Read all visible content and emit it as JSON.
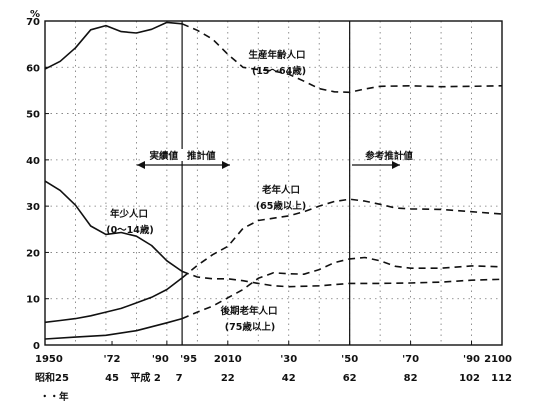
{
  "chart_data": {
    "type": "line",
    "ylabel": "%",
    "ylim": [
      0,
      70
    ],
    "y_ticks": [
      0,
      10,
      20,
      30,
      40,
      50,
      60,
      70
    ],
    "xlim": [
      1950,
      2100
    ],
    "x_ticks": [
      {
        "x": 1950,
        "label": "1950",
        "sublabel": "昭和25"
      },
      {
        "x": 1972,
        "label": "'72",
        "sublabel": "45"
      },
      {
        "x": 1990,
        "label": "'90",
        "sublabel": "平成 2"
      },
      {
        "x": 1995,
        "label": "'95",
        "sublabel": "7"
      },
      {
        "x": 2010,
        "label": "2010",
        "sublabel": "22"
      },
      {
        "x": 2030,
        "label": "'30",
        "sublabel": "42"
      },
      {
        "x": 2050,
        "label": "'50",
        "sublabel": "62"
      },
      {
        "x": 2070,
        "label": "'70",
        "sublabel": "82"
      },
      {
        "x": 2090,
        "label": "'90",
        "sublabel": "102"
      },
      {
        "x": 2100,
        "label": "2100",
        "sublabel": "112"
      }
    ],
    "x_unit_label": "・・年",
    "divider_years": [
      1995,
      2050
    ],
    "series": [
      {
        "name": "生産年齢人口",
        "name2": "(15～64歳)",
        "actual": [
          [
            1950,
            59.6
          ],
          [
            1955,
            61.3
          ],
          [
            1960,
            64.2
          ],
          [
            1965,
            68.1
          ],
          [
            1970,
            69.0
          ],
          [
            1975,
            67.7
          ],
          [
            1980,
            67.4
          ],
          [
            1985,
            68.2
          ],
          [
            1990,
            69.7
          ],
          [
            1995,
            69.4
          ]
        ],
        "projected": [
          [
            1995,
            69.4
          ],
          [
            2000,
            68.0
          ],
          [
            2005,
            66.1
          ],
          [
            2010,
            62.8
          ],
          [
            2015,
            60.0
          ],
          [
            2020,
            59.5
          ],
          [
            2025,
            59.2
          ],
          [
            2030,
            58.5
          ],
          [
            2035,
            57.0
          ],
          [
            2040,
            55.4
          ],
          [
            2045,
            54.7
          ],
          [
            2050,
            54.6
          ],
          [
            2055,
            55.3
          ],
          [
            2060,
            55.9
          ],
          [
            2070,
            56.0
          ],
          [
            2080,
            55.8
          ],
          [
            2090,
            55.9
          ],
          [
            2100,
            56.0
          ]
        ]
      },
      {
        "name": "年少人口",
        "name2": "(0～14歳)",
        "actual": [
          [
            1950,
            35.4
          ],
          [
            1955,
            33.4
          ],
          [
            1960,
            30.2
          ],
          [
            1965,
            25.7
          ],
          [
            1970,
            23.9
          ],
          [
            1975,
            24.3
          ],
          [
            1980,
            23.5
          ],
          [
            1985,
            21.5
          ],
          [
            1990,
            18.2
          ],
          [
            1995,
            15.9
          ]
        ],
        "projected": [
          [
            1995,
            15.9
          ],
          [
            2000,
            14.7
          ],
          [
            2005,
            14.3
          ],
          [
            2010,
            14.3
          ],
          [
            2015,
            13.9
          ],
          [
            2020,
            13.3
          ],
          [
            2025,
            12.8
          ],
          [
            2030,
            12.6
          ],
          [
            2040,
            12.8
          ],
          [
            2050,
            13.3
          ],
          [
            2060,
            13.3
          ],
          [
            2070,
            13.4
          ],
          [
            2080,
            13.6
          ],
          [
            2090,
            14.0
          ],
          [
            2100,
            14.2
          ]
        ]
      },
      {
        "name": "老年人口",
        "name2": "(65歳以上)",
        "actual": [
          [
            1950,
            4.9
          ],
          [
            1955,
            5.3
          ],
          [
            1960,
            5.7
          ],
          [
            1965,
            6.3
          ],
          [
            1970,
            7.1
          ],
          [
            1975,
            7.9
          ],
          [
            1980,
            9.1
          ],
          [
            1985,
            10.3
          ],
          [
            1990,
            12.0
          ],
          [
            1995,
            14.5
          ]
        ],
        "projected": [
          [
            1995,
            14.5
          ],
          [
            2000,
            17.2
          ],
          [
            2005,
            19.5
          ],
          [
            2010,
            21.3
          ],
          [
            2015,
            25.2
          ],
          [
            2020,
            26.9
          ],
          [
            2025,
            27.4
          ],
          [
            2030,
            27.9
          ],
          [
            2035,
            28.8
          ],
          [
            2040,
            30.0
          ],
          [
            2045,
            31.0
          ],
          [
            2050,
            31.5
          ],
          [
            2055,
            31.1
          ],
          [
            2060,
            30.4
          ],
          [
            2065,
            29.6
          ],
          [
            2070,
            29.4
          ],
          [
            2080,
            29.3
          ],
          [
            2090,
            28.8
          ],
          [
            2100,
            28.3
          ]
        ]
      },
      {
        "name": "後期老年人口",
        "name2": "(75歳以上)",
        "actual": [
          [
            1950,
            1.3
          ],
          [
            1960,
            1.7
          ],
          [
            1970,
            2.1
          ],
          [
            1980,
            3.1
          ],
          [
            1990,
            4.8
          ],
          [
            1995,
            5.7
          ]
        ],
        "projected": [
          [
            1995,
            5.7
          ],
          [
            2000,
            7.1
          ],
          [
            2005,
            8.4
          ],
          [
            2010,
            10.2
          ],
          [
            2015,
            12.0
          ],
          [
            2020,
            14.4
          ],
          [
            2025,
            15.6
          ],
          [
            2030,
            15.4
          ],
          [
            2035,
            15.3
          ],
          [
            2040,
            16.3
          ],
          [
            2045,
            17.8
          ],
          [
            2050,
            18.6
          ],
          [
            2055,
            18.9
          ],
          [
            2060,
            18.2
          ],
          [
            2065,
            17.0
          ],
          [
            2070,
            16.6
          ],
          [
            2080,
            16.6
          ],
          [
            2090,
            17.1
          ],
          [
            2100,
            16.9
          ]
        ]
      }
    ],
    "annotations": {
      "actual_label": "実績値",
      "projected_label": "推計値",
      "reference_label": "参考推計値"
    }
  }
}
